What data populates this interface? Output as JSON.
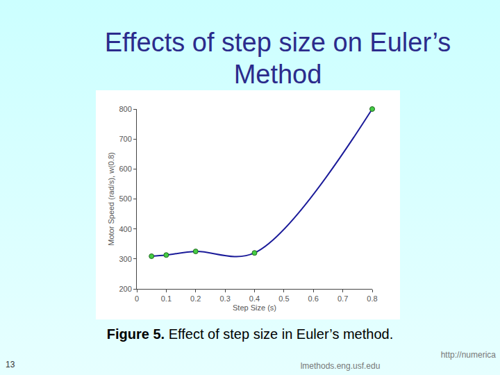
{
  "slide": {
    "title": "Effects of step size on Euler’s Method",
    "caption": {
      "label": "Figure 5.",
      "text": "Effect of step size in Euler’s method."
    },
    "page_number": "13",
    "footer": "lmethods.eng.usf.edu",
    "url": "http://numerica"
  },
  "chart_data": {
    "type": "line",
    "x_label": "Step Size (s)",
    "y_label": "Motor Speed (rad/s), w(0.8)",
    "x": [
      0.05,
      0.1,
      0.2,
      0.4,
      0.8
    ],
    "values": [
      309,
      313,
      325,
      320,
      800
    ],
    "color": "#1a1a99",
    "marker": "circle",
    "line_style": "spline",
    "xlim": [
      0,
      0.8
    ],
    "xticks": [
      0,
      0.1,
      0.2,
      0.3,
      0.4,
      0.5,
      0.6,
      0.7,
      0.8
    ],
    "ylim": [
      200,
      800
    ],
    "yticks": [
      200,
      300,
      400,
      500,
      600,
      700,
      800
    ],
    "grid": false
  }
}
